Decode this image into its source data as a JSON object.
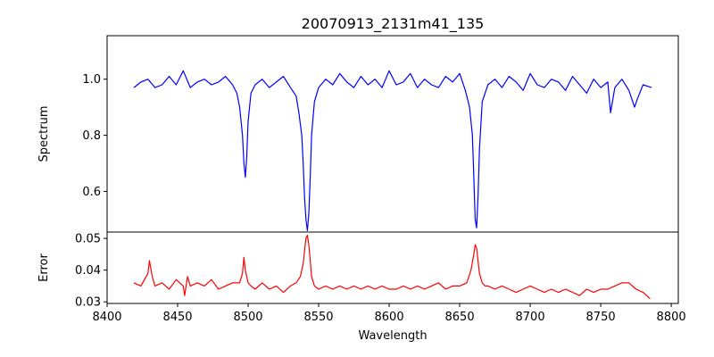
{
  "chart_data": [
    {
      "type": "line",
      "title": "20070913_2131m41_135",
      "xlabel": "",
      "ylabel": "Spectrum",
      "xlim": [
        8400,
        8805
      ],
      "ylim": [
        0.455,
        1.155
      ],
      "yticks": [
        0.6,
        0.8,
        1.0
      ],
      "ytick_labels": [
        "0.6",
        "0.8",
        "1.0"
      ],
      "grid": false,
      "series": [
        {
          "color": "#0000ff",
          "x": [
            8419,
            8424,
            8429,
            8434,
            8439,
            8444,
            8449,
            8454,
            8459,
            8464,
            8469,
            8474,
            8479,
            8484,
            8489,
            8492,
            8494,
            8496,
            8497,
            8498,
            8499,
            8500,
            8502,
            8505,
            8510,
            8515,
            8520,
            8525,
            8530,
            8534,
            8536,
            8538,
            8539,
            8540,
            8541,
            8542,
            8543,
            8544,
            8545,
            8547,
            8550,
            8555,
            8560,
            8565,
            8570,
            8575,
            8580,
            8585,
            8590,
            8595,
            8600,
            8605,
            8610,
            8615,
            8620,
            8625,
            8630,
            8635,
            8640,
            8645,
            8650,
            8654,
            8657,
            8659,
            8660,
            8661,
            8662,
            8663,
            8664,
            8666,
            8670,
            8675,
            8680,
            8685,
            8690,
            8695,
            8700,
            8705,
            8710,
            8715,
            8720,
            8725,
            8730,
            8735,
            8740,
            8745,
            8750,
            8755,
            8757,
            8760,
            8765,
            8770,
            8774,
            8776,
            8780,
            8786
          ],
          "y": [
            0.97,
            0.99,
            1.0,
            0.97,
            0.98,
            1.01,
            0.98,
            1.03,
            0.97,
            0.99,
            1.0,
            0.98,
            0.99,
            1.01,
            0.98,
            0.95,
            0.9,
            0.8,
            0.7,
            0.65,
            0.72,
            0.85,
            0.95,
            0.98,
            1.0,
            0.97,
            0.99,
            1.01,
            0.97,
            0.94,
            0.88,
            0.8,
            0.7,
            0.58,
            0.5,
            0.46,
            0.52,
            0.65,
            0.8,
            0.92,
            0.97,
            1.0,
            0.98,
            1.02,
            0.99,
            0.97,
            1.01,
            0.98,
            1.0,
            0.97,
            1.03,
            0.98,
            0.99,
            1.02,
            0.97,
            1.0,
            0.98,
            0.97,
            1.01,
            0.99,
            1.02,
            0.96,
            0.9,
            0.8,
            0.65,
            0.5,
            0.47,
            0.58,
            0.75,
            0.92,
            0.98,
            1.0,
            0.97,
            1.01,
            0.99,
            0.96,
            1.02,
            0.98,
            0.97,
            1.0,
            0.99,
            0.96,
            1.01,
            0.98,
            0.95,
            1.0,
            0.97,
            0.99,
            0.88,
            0.97,
            1.0,
            0.96,
            0.9,
            0.93,
            0.98,
            0.97
          ]
        }
      ]
    },
    {
      "type": "line",
      "title": "",
      "xlabel": "Wavelength",
      "ylabel": "Error",
      "xlim": [
        8400,
        8805
      ],
      "ylim": [
        0.0295,
        0.052
      ],
      "xticks": [
        8400,
        8450,
        8500,
        8550,
        8600,
        8650,
        8700,
        8750,
        8800
      ],
      "xtick_labels": [
        "8400",
        "8450",
        "8500",
        "8550",
        "8600",
        "8650",
        "8700",
        "8750",
        "8800"
      ],
      "yticks": [
        0.03,
        0.04,
        0.05
      ],
      "ytick_labels": [
        "0.03",
        "0.04",
        "0.05"
      ],
      "grid": false,
      "series": [
        {
          "color": "#ff0000",
          "x": [
            8419,
            8424,
            8429,
            8430,
            8432,
            8434,
            8439,
            8444,
            8449,
            8454,
            8455,
            8457,
            8459,
            8464,
            8469,
            8474,
            8479,
            8484,
            8489,
            8494,
            8496,
            8497,
            8498,
            8500,
            8502,
            8505,
            8510,
            8515,
            8520,
            8525,
            8530,
            8534,
            8537,
            8539,
            8540,
            8541,
            8542,
            8543,
            8544,
            8545,
            8547,
            8550,
            8555,
            8560,
            8565,
            8570,
            8575,
            8580,
            8585,
            8590,
            8595,
            8600,
            8605,
            8610,
            8615,
            8620,
            8625,
            8630,
            8635,
            8640,
            8645,
            8650,
            8655,
            8658,
            8660,
            8661,
            8662,
            8663,
            8664,
            8666,
            8668,
            8670,
            8675,
            8680,
            8685,
            8690,
            8695,
            8700,
            8705,
            8710,
            8715,
            8720,
            8725,
            8730,
            8735,
            8740,
            8745,
            8750,
            8755,
            8760,
            8765,
            8770,
            8775,
            8780,
            8785
          ],
          "y": [
            0.036,
            0.035,
            0.039,
            0.043,
            0.038,
            0.035,
            0.036,
            0.034,
            0.037,
            0.035,
            0.032,
            0.038,
            0.035,
            0.036,
            0.035,
            0.037,
            0.034,
            0.035,
            0.036,
            0.036,
            0.039,
            0.044,
            0.04,
            0.036,
            0.035,
            0.034,
            0.036,
            0.034,
            0.035,
            0.033,
            0.035,
            0.036,
            0.038,
            0.042,
            0.046,
            0.05,
            0.051,
            0.048,
            0.043,
            0.038,
            0.035,
            0.034,
            0.035,
            0.034,
            0.035,
            0.034,
            0.035,
            0.034,
            0.035,
            0.034,
            0.035,
            0.034,
            0.034,
            0.035,
            0.034,
            0.035,
            0.034,
            0.035,
            0.036,
            0.034,
            0.035,
            0.035,
            0.036,
            0.04,
            0.045,
            0.048,
            0.047,
            0.043,
            0.039,
            0.036,
            0.035,
            0.035,
            0.034,
            0.035,
            0.034,
            0.033,
            0.034,
            0.035,
            0.034,
            0.033,
            0.034,
            0.033,
            0.034,
            0.033,
            0.032,
            0.034,
            0.033,
            0.034,
            0.034,
            0.035,
            0.036,
            0.036,
            0.034,
            0.033,
            0.031
          ]
        }
      ]
    }
  ]
}
